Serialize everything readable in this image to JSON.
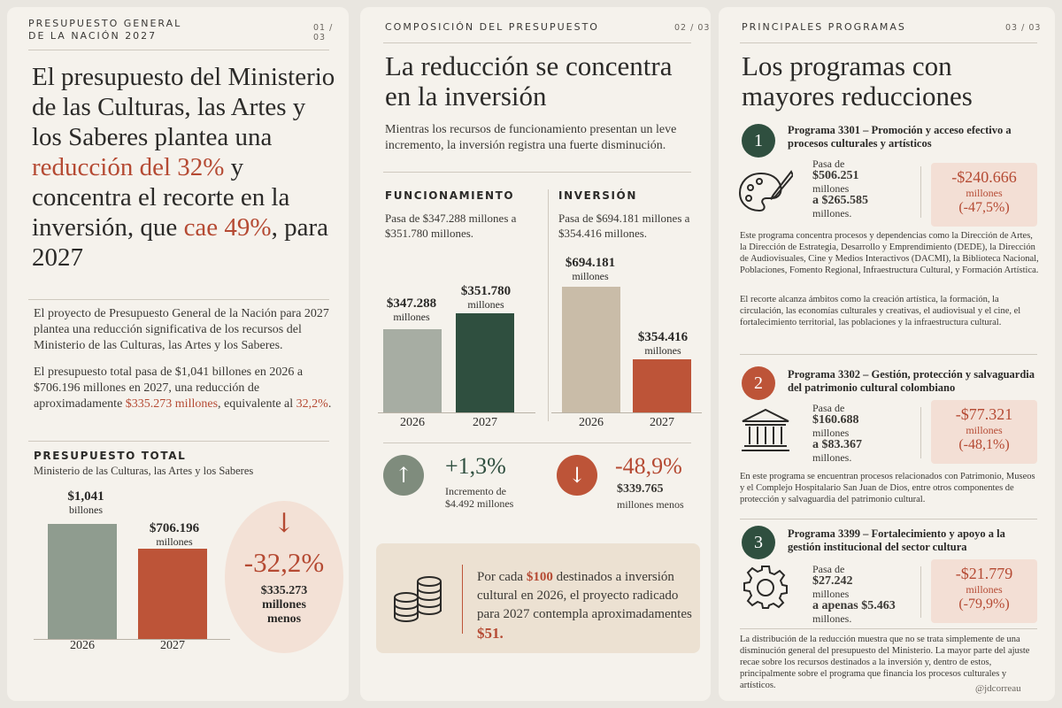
{
  "colors": {
    "green": "#2f4f3f",
    "sage": "#8f9c8f",
    "terracotta": "#bd5438",
    "red_text": "#b54a33",
    "beige": "#c9bca8",
    "gray_bar": "#a7ada3"
  },
  "panel1": {
    "kicker_line1": "PRESUPUESTO GENERAL",
    "kicker_line2": "DE LA NACIÓN 2027",
    "page": "01 / 03",
    "title_a": "El presupuesto del Ministerio de las Culturas, las Artes y los Saberes plantea una ",
    "title_b": "reducción del 32%",
    "title_c": " y concentra el recorte en la inversión, que ",
    "title_d": "cae 49%",
    "title_e": ", para 2027",
    "para1": "El proyecto de Presupuesto General de la Nación para 2027 plantea una reducción significativa de los recursos del Ministerio de las Culturas, las Artes y los Saberes.",
    "para2_a": "El presupuesto total pasa de $1,041 billones en 2026 a $706.196 millones en 2027, una reducción de aproximadamente ",
    "para2_b": "$335.273 millones",
    "para2_c": ", equivalente al ",
    "para2_d": "32,2%",
    "para2_e": ".",
    "chart_label": "PRESUPUESTO TOTAL",
    "chart_sub": "Ministerio de las Culturas, las Artes y los Saberes",
    "bar1_value": "$1,041",
    "bar1_unit": "billones",
    "bar2_value": "$706.196",
    "bar2_unit": "millones",
    "year1": "2026",
    "year2": "2027",
    "pct": "-32,2%",
    "delta_value": "$335.273",
    "delta_unit1": "millones",
    "delta_unit2": "menos",
    "arrow": "↓"
  },
  "panel2": {
    "kicker": "COMPOSICIÓN DEL PRESUPUESTO",
    "page": "02 / 03",
    "title": "La reducción se concentra en la inversión",
    "intro": "Mientras los recursos de funcionamiento presentan un leve incremento, la inversión registra una fuerte disminución.",
    "func_label": "FUNCIONAMIENTO",
    "func_desc": "Pasa de $347.288 millones a $351.780 millones.",
    "inv_label": "INVERSIÓN",
    "inv_desc": "Pasa de $694.181 millones a $354.416 millones.",
    "func_2026": "$347.288",
    "func_2027": "$351.780",
    "inv_2026": "$694.181",
    "inv_2027": "$354.416",
    "unit": "millones",
    "year1": "2026",
    "year2": "2027",
    "func_pct": "+1,3%",
    "func_note": "Incremento de $4.492 millones",
    "inv_pct": "-48,9%",
    "inv_delta": "$339.765",
    "inv_note": "millones menos",
    "up": "↑",
    "down": "↓",
    "callout_a": "Por cada ",
    "callout_b": "$100",
    "callout_c": " destinados a inversión cultural en 2026, el proyecto radicado para 2027 contempla aproximadamentes ",
    "callout_d": "$51."
  },
  "chart_data": [
    {
      "type": "bar",
      "title": "PRESUPUESTO TOTAL",
      "categories": [
        "2026",
        "2027"
      ],
      "values": [
        1041000,
        706196
      ],
      "unit": "millones"
    },
    {
      "type": "bar",
      "title": "FUNCIONAMIENTO",
      "categories": [
        "2026",
        "2027"
      ],
      "values": [
        347288,
        351780
      ],
      "unit": "millones"
    },
    {
      "type": "bar",
      "title": "INVERSIÓN",
      "categories": [
        "2026",
        "2027"
      ],
      "values": [
        694181,
        354416
      ],
      "unit": "millones"
    }
  ],
  "panel3": {
    "kicker": "PRINCIPALES PROGRAMAS",
    "page": "03 / 03",
    "title": "Los programas con mayores reducciones",
    "programs": [
      {
        "num": "1",
        "name": "Programa 3301 – Promoción y acceso efectivo a procesos culturales y artísticos",
        "from_label": "Pasa de",
        "from_value": "$506.251",
        "from_unit": "millones",
        "to_label": "a $265.585",
        "to_unit": "millones.",
        "delta": "-$240.666",
        "delta_unit": "millones",
        "delta_pct": "(-47,5%)",
        "desc1": "Este programa concentra procesos y dependencias como la Dirección de Artes, la Dirección de Estrategia, Desarrollo y Emprendimiento (DEDE), la Dirección de Audiovisuales, Cine y Medios Interactivos (DACMI), la Biblioteca Nacional, Poblaciones, Fomento Regional, Infraestructura Cultural, y Formación Artística.",
        "desc2": "El recorte alcanza ámbitos como la creación artística, la formación, la circulación, las economías culturales y creativas, el audiovisual y el cine, el fortalecimiento territorial, las poblaciones y la infraestructura cultural.",
        "icon": "palette-icon"
      },
      {
        "num": "2",
        "name": "Programa 3302 – Gestión, protección y salvaguardia del patrimonio cultural colombiano",
        "from_label": "Pasa de",
        "from_value": "$160.688",
        "from_unit": "millones",
        "to_label": "a $83.367",
        "to_unit": "millones.",
        "delta": "-$77.321",
        "delta_unit": "millones",
        "delta_pct": "(-48,1%)",
        "desc1": "En este programa se encuentran procesos relacionados con Patrimonio, Museos y el Complejo Hospitalario San Juan de Dios, entre otros componentes de protección y salvaguardia del patrimonio cultural.",
        "icon": "museum-icon"
      },
      {
        "num": "3",
        "name": "Programa 3399 – Fortalecimiento y apoyo a la gestión institucional del sector cultura",
        "from_label": "Pasa de",
        "from_value": "$27.242",
        "from_unit": "millones",
        "to_label": "a apenas $5.463",
        "to_unit": "millones.",
        "delta": "-$21.779",
        "delta_unit": "millones",
        "delta_pct": "(-79,9%)",
        "icon": "gear-icon"
      }
    ],
    "footer": "La distribución de la reducción muestra que no se trata simplemente de una disminución general del presupuesto del Ministerio. La mayor parte del ajuste recae sobre los recursos destinados a la inversión y, dentro de estos, principalmente sobre el programa que financia los procesos culturales y artísticos.",
    "handle": "@jdcorreau"
  }
}
